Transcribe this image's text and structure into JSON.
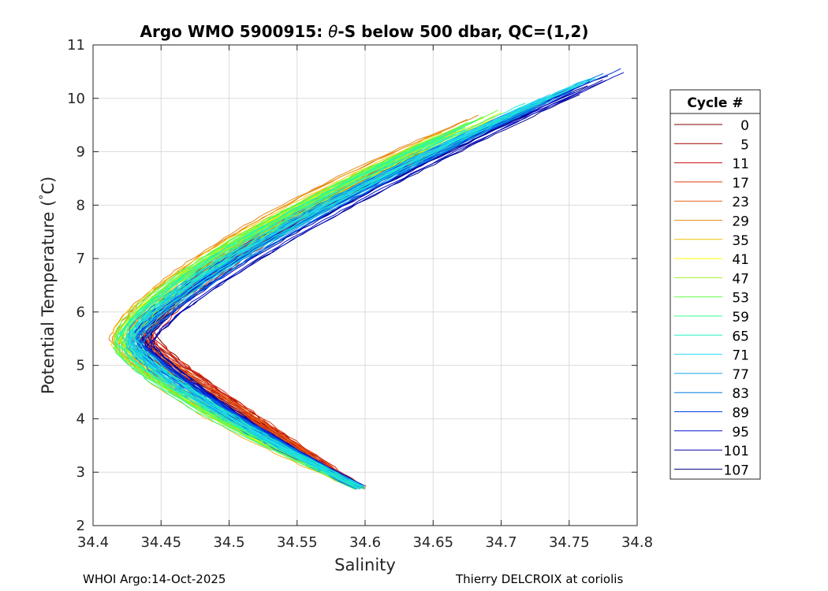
{
  "chart_data": {
    "type": "line",
    "title_prefix": "Argo WMO 5900915: ",
    "title_theta": "θ",
    "title_suffix": "-S below 500 dbar,  QC=(1,2)",
    "xlabel": "Salinity",
    "ylabel_main": "Potential Temperature (",
    "ylabel_deg": "°",
    "ylabel_end": "C)",
    "xlim": [
      34.4,
      34.8
    ],
    "ylim": [
      2,
      11
    ],
    "xticks": [
      34.4,
      34.45,
      34.5,
      34.55,
      34.6,
      34.65,
      34.7,
      34.75,
      34.8
    ],
    "xtick_labels": [
      "34.4",
      "34.45",
      "34.5",
      "34.55",
      "34.6",
      "34.65",
      "34.7",
      "34.75",
      "34.8"
    ],
    "yticks": [
      2,
      3,
      4,
      5,
      6,
      7,
      8,
      9,
      10,
      11
    ],
    "ytick_labels": [
      "2",
      "3",
      "4",
      "5",
      "6",
      "7",
      "8",
      "9",
      "10",
      "11"
    ],
    "grid": true,
    "legend_position": "right",
    "legend_title": "Cycle #",
    "legend_entries": [
      {
        "label": "0",
        "color": "#7f0000"
      },
      {
        "label": "5",
        "color": "#a00000"
      },
      {
        "label": "11",
        "color": "#c81010"
      },
      {
        "label": "17",
        "color": "#e03a10"
      },
      {
        "label": "23",
        "color": "#e8601a"
      },
      {
        "label": "29",
        "color": "#e8901a"
      },
      {
        "label": "35",
        "color": "#f0c000"
      },
      {
        "label": "41",
        "color": "#ffff00"
      },
      {
        "label": "47",
        "color": "#a0f020"
      },
      {
        "label": "53",
        "color": "#60ff40"
      },
      {
        "label": "59",
        "color": "#30ff90"
      },
      {
        "label": "65",
        "color": "#20f0c0"
      },
      {
        "label": "71",
        "color": "#20d8f0"
      },
      {
        "label": "77",
        "color": "#10a8e8"
      },
      {
        "label": "83",
        "color": "#0078e0"
      },
      {
        "label": "89",
        "color": "#0040e8"
      },
      {
        "label": "95",
        "color": "#0010d0"
      },
      {
        "label": "101",
        "color": "#0000a8"
      },
      {
        "label": "107",
        "color": "#000080"
      }
    ],
    "series_profile": {
      "bottom": {
        "s": 34.597,
        "t": 2.7
      },
      "salinity_minimum": {
        "s": 34.428,
        "t": 5.5
      },
      "top": {
        "s": 34.74,
        "t": 10.2
      }
    }
  },
  "footer": {
    "left": "WHOI Argo:14-Oct-2025",
    "right": "Thierry DELCROIX at coriolis"
  }
}
